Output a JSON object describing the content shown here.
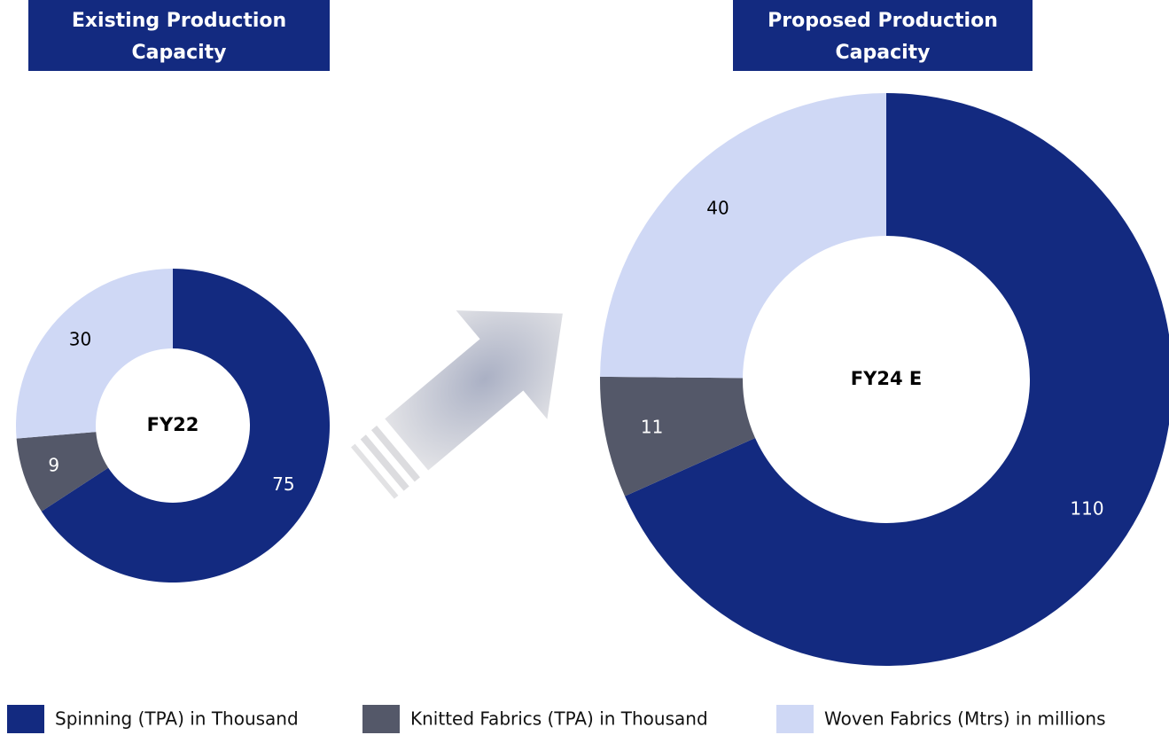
{
  "legend": [
    {
      "name": "Spinning (TPA) in Thousand",
      "color": "#132a80"
    },
    {
      "name": "Knitted Fabrics (TPA) in Thousand",
      "color": "#545869"
    },
    {
      "name": "Woven Fabrics (Mtrs) in millions",
      "color": "#cfd8f5"
    }
  ],
  "chart_data": [
    {
      "type": "pie",
      "title": [
        "Existing Production",
        "Capacity"
      ],
      "center_label": "FY22",
      "values": [
        75,
        9,
        30
      ]
    },
    {
      "type": "pie",
      "title": [
        "Proposed Production",
        "Capacity"
      ],
      "center_label": "FY24 E",
      "values": [
        110,
        11,
        40
      ]
    }
  ]
}
